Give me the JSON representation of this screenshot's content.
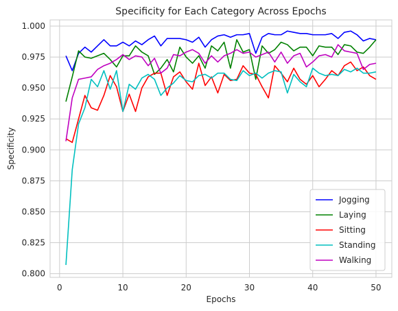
{
  "chart_data": {
    "type": "line",
    "title": "Specificity for Each Category Across Epochs",
    "xlabel": "Epochs",
    "ylabel": "Specificity",
    "xlim": [
      -1.5,
      52.5
    ],
    "ylim": [
      0.797,
      1.005
    ],
    "xticks": [
      0,
      10,
      20,
      30,
      40,
      50
    ],
    "yticks": [
      0.8,
      0.825,
      0.85,
      0.875,
      0.9,
      0.925,
      0.95,
      0.975,
      1.0
    ],
    "ytick_labels": [
      "0.800",
      "0.825",
      "0.850",
      "0.875",
      "0.900",
      "0.925",
      "0.950",
      "0.975",
      "1.000"
    ],
    "grid": true,
    "legend_position": "lower right",
    "x": [
      1,
      2,
      3,
      4,
      5,
      6,
      7,
      8,
      9,
      10,
      11,
      12,
      13,
      14,
      15,
      16,
      17,
      18,
      19,
      20,
      21,
      22,
      23,
      24,
      25,
      26,
      27,
      28,
      29,
      30,
      31,
      32,
      33,
      34,
      35,
      36,
      37,
      38,
      39,
      40,
      41,
      42,
      43,
      44,
      45,
      46,
      47,
      48,
      49,
      50
    ],
    "series": [
      {
        "name": "Jogging",
        "color": "#0000ff",
        "values": [
          0.976,
          0.964,
          0.978,
          0.983,
          0.979,
          0.984,
          0.989,
          0.984,
          0.984,
          0.987,
          0.984,
          0.988,
          0.985,
          0.989,
          0.992,
          0.984,
          0.99,
          0.99,
          0.99,
          0.989,
          0.987,
          0.991,
          0.983,
          0.989,
          0.992,
          0.993,
          0.991,
          0.993,
          0.993,
          0.994,
          0.978,
          0.991,
          0.994,
          0.993,
          0.993,
          0.996,
          0.995,
          0.994,
          0.994,
          0.993,
          0.993,
          0.993,
          0.994,
          0.99,
          0.995,
          0.996,
          0.993,
          0.988,
          0.99,
          0.989
        ]
      },
      {
        "name": "Laying",
        "color": "#008000",
        "values": [
          0.939,
          0.959,
          0.98,
          0.975,
          0.974,
          0.976,
          0.978,
          0.973,
          0.967,
          0.976,
          0.976,
          0.984,
          0.979,
          0.976,
          0.961,
          0.966,
          0.973,
          0.963,
          0.983,
          0.975,
          0.97,
          0.976,
          0.966,
          0.984,
          0.98,
          0.987,
          0.966,
          0.989,
          0.979,
          0.981,
          0.957,
          0.984,
          0.978,
          0.981,
          0.987,
          0.985,
          0.98,
          0.983,
          0.983,
          0.976,
          0.984,
          0.983,
          0.983,
          0.977,
          0.985,
          0.984,
          0.979,
          0.978,
          0.983,
          0.989
        ]
      },
      {
        "name": "Sitting",
        "color": "#ff0000",
        "values": [
          0.909,
          0.906,
          0.925,
          0.944,
          0.934,
          0.932,
          0.944,
          0.96,
          0.951,
          0.931,
          0.945,
          0.931,
          0.95,
          0.959,
          0.962,
          0.962,
          0.944,
          0.959,
          0.963,
          0.955,
          0.949,
          0.97,
          0.952,
          0.959,
          0.946,
          0.961,
          0.956,
          0.957,
          0.968,
          0.962,
          0.961,
          0.951,
          0.942,
          0.968,
          0.962,
          0.955,
          0.966,
          0.957,
          0.953,
          0.96,
          0.951,
          0.957,
          0.964,
          0.96,
          0.968,
          0.971,
          0.964,
          0.967,
          0.96,
          0.957
        ]
      },
      {
        "name": "Standing",
        "color": "#00bfbf",
        "values": [
          0.807,
          0.884,
          0.921,
          0.934,
          0.957,
          0.951,
          0.964,
          0.949,
          0.964,
          0.931,
          0.953,
          0.949,
          0.958,
          0.961,
          0.957,
          0.944,
          0.95,
          0.954,
          0.96,
          0.956,
          0.955,
          0.96,
          0.961,
          0.958,
          0.962,
          0.962,
          0.957,
          0.956,
          0.964,
          0.96,
          0.962,
          0.958,
          0.962,
          0.964,
          0.963,
          0.946,
          0.961,
          0.955,
          0.951,
          0.966,
          0.962,
          0.96,
          0.961,
          0.96,
          0.965,
          0.963,
          0.966,
          0.962,
          0.962,
          0.963
        ]
      },
      {
        "name": "Walking",
        "color": "#bf00bf",
        "values": [
          0.907,
          0.942,
          0.957,
          0.958,
          0.959,
          0.965,
          0.968,
          0.97,
          0.973,
          0.977,
          0.973,
          0.976,
          0.975,
          0.968,
          0.974,
          0.962,
          0.966,
          0.977,
          0.976,
          0.979,
          0.981,
          0.978,
          0.97,
          0.976,
          0.971,
          0.976,
          0.978,
          0.981,
          0.978,
          0.979,
          0.975,
          0.977,
          0.979,
          0.971,
          0.979,
          0.97,
          0.976,
          0.978,
          0.967,
          0.971,
          0.976,
          0.977,
          0.975,
          0.985,
          0.98,
          0.979,
          0.978,
          0.965,
          0.969,
          0.97
        ]
      }
    ]
  }
}
